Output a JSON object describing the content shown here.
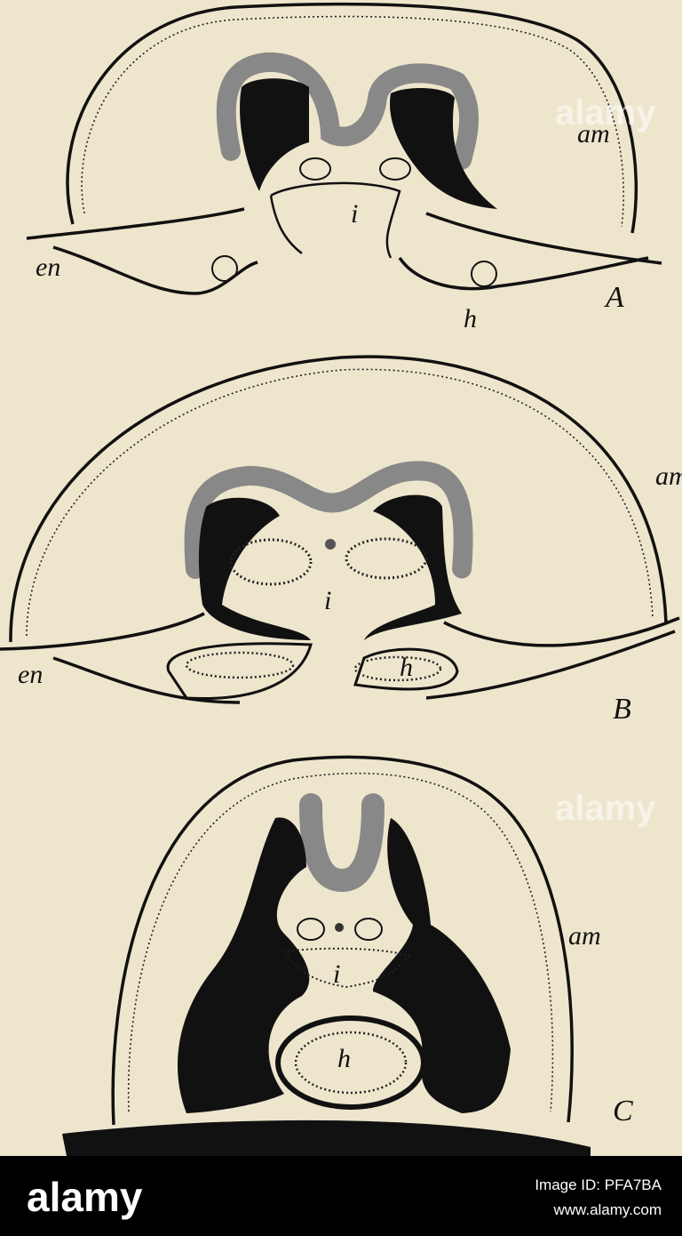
{
  "figures": [
    {
      "panel": "A",
      "labels": [
        "am",
        "en",
        "i",
        "h"
      ]
    },
    {
      "panel": "B",
      "labels": [
        "am",
        "en",
        "i",
        "h"
      ]
    },
    {
      "panel": "C",
      "labels": [
        "am",
        "i",
        "h"
      ]
    }
  ],
  "watermarks": [
    "alamy",
    "alamy"
  ],
  "footer": {
    "brand": "alamy",
    "image_id": "Image ID: PFA7BA",
    "url": "www.alamy.com"
  }
}
